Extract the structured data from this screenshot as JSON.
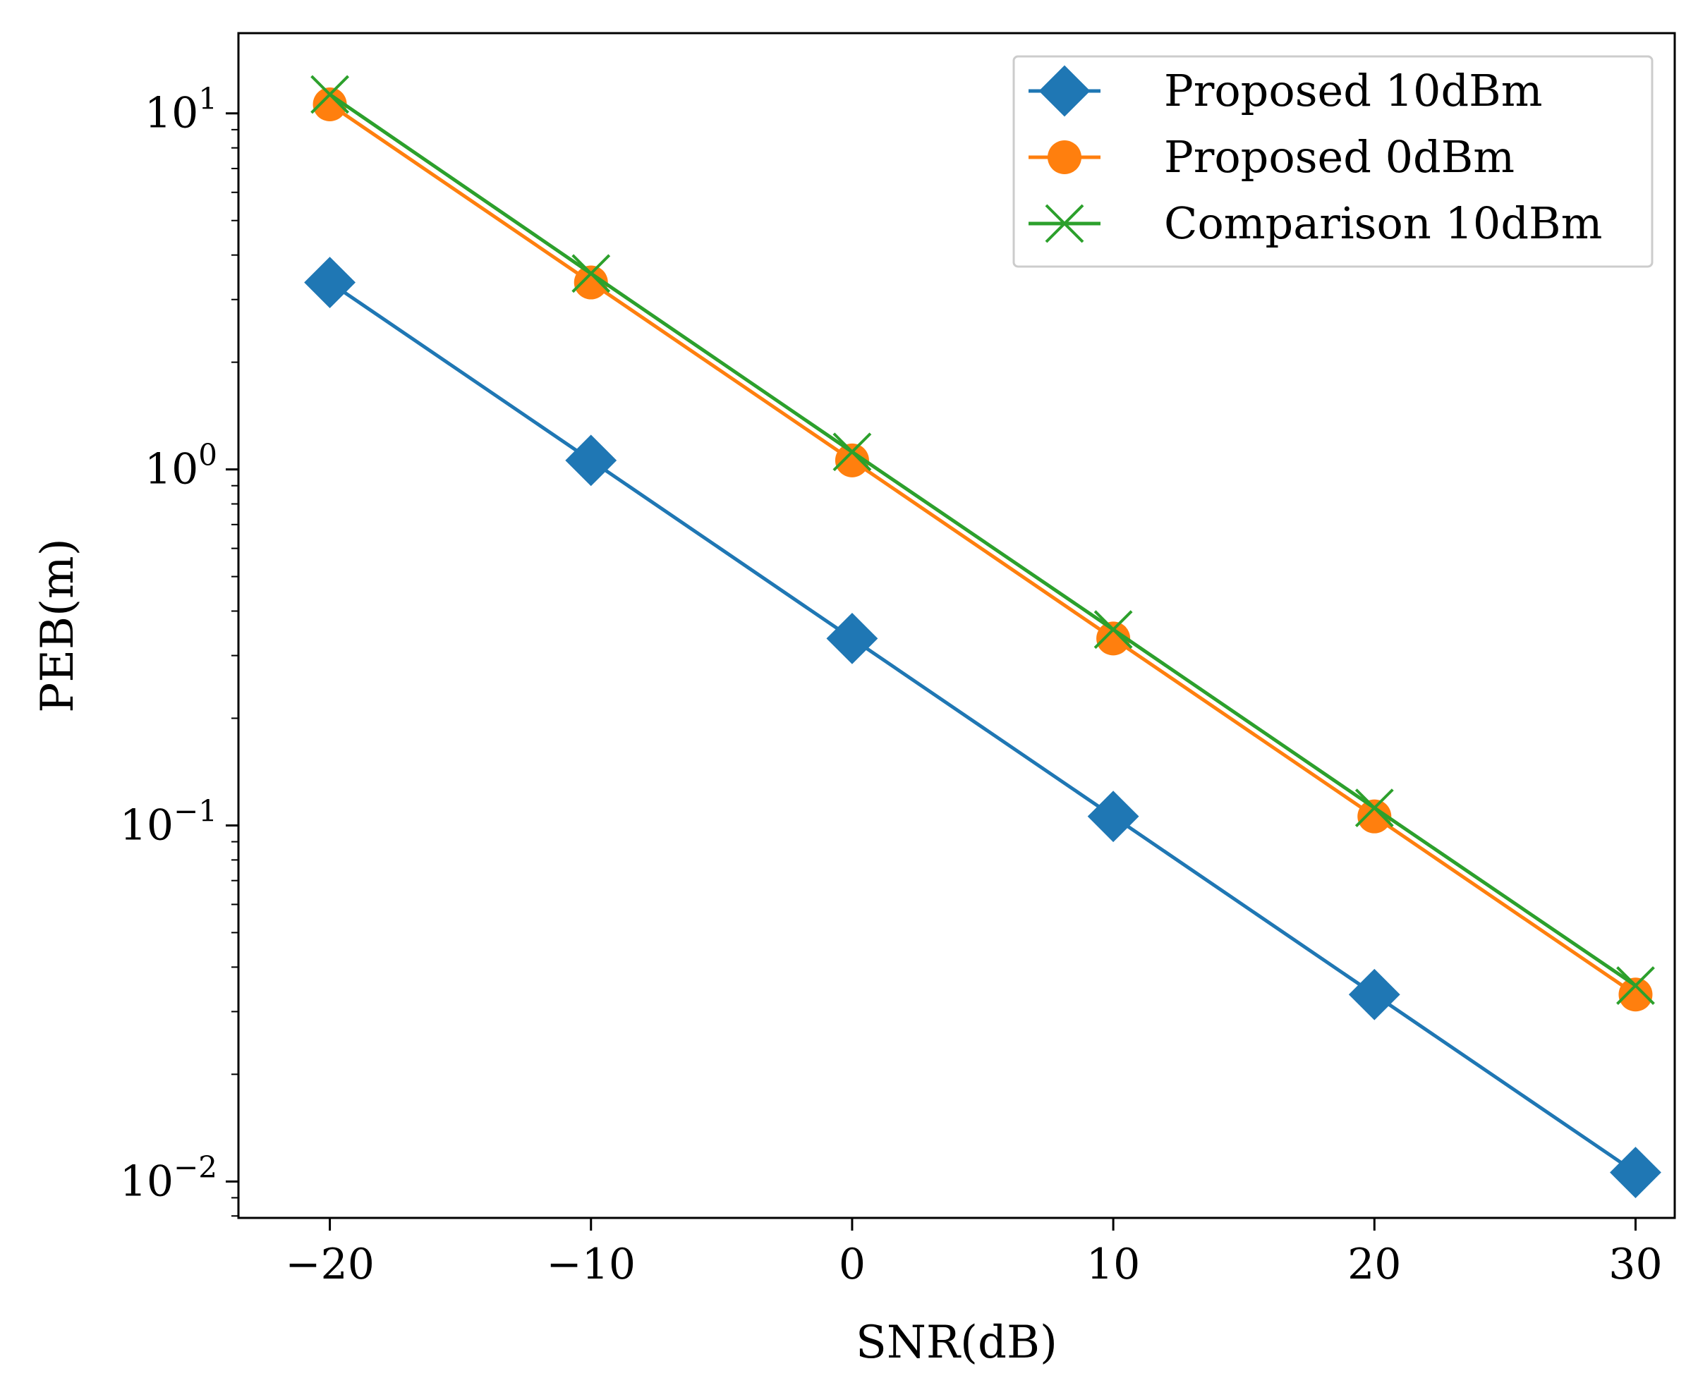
{
  "chart_data": {
    "type": "line",
    "title": "",
    "xlabel": "SNR(dB)",
    "ylabel": "PEB(m)",
    "yscale": "log",
    "xlim": [
      -23.5,
      31.5
    ],
    "ylim": [
      0.0079,
      16.8
    ],
    "x": [
      -20,
      -10,
      0,
      10,
      20,
      30
    ],
    "xticks": [
      -20,
      -10,
      0,
      10,
      20,
      30
    ],
    "xtick_labels": [
      "−20",
      "−10",
      "0",
      "10",
      "20",
      "30"
    ],
    "yticks": [
      0.01,
      0.1,
      1,
      10
    ],
    "ytick_labels": [
      {
        "base": "10",
        "exp": "−2"
      },
      {
        "base": "10",
        "exp": "−1"
      },
      {
        "base": "10",
        "exp": "0"
      },
      {
        "base": "10",
        "exp": "1"
      }
    ],
    "grid": false,
    "legend_position": "top-right",
    "series": [
      {
        "name": "Proposed 10dBm",
        "marker": "diamond",
        "color": "#1f77b4",
        "values": [
          3.35,
          1.06,
          0.335,
          0.106,
          0.0335,
          0.0106
        ]
      },
      {
        "name": "Proposed 0dBm",
        "marker": "circle",
        "color": "#ff7f0e",
        "values": [
          10.6,
          3.35,
          1.06,
          0.335,
          0.106,
          0.0335
        ]
      },
      {
        "name": "Comparison 10dBm",
        "marker": "x",
        "color": "#2ca02c",
        "values": [
          11.3,
          3.55,
          1.12,
          0.355,
          0.112,
          0.0355
        ]
      }
    ]
  }
}
